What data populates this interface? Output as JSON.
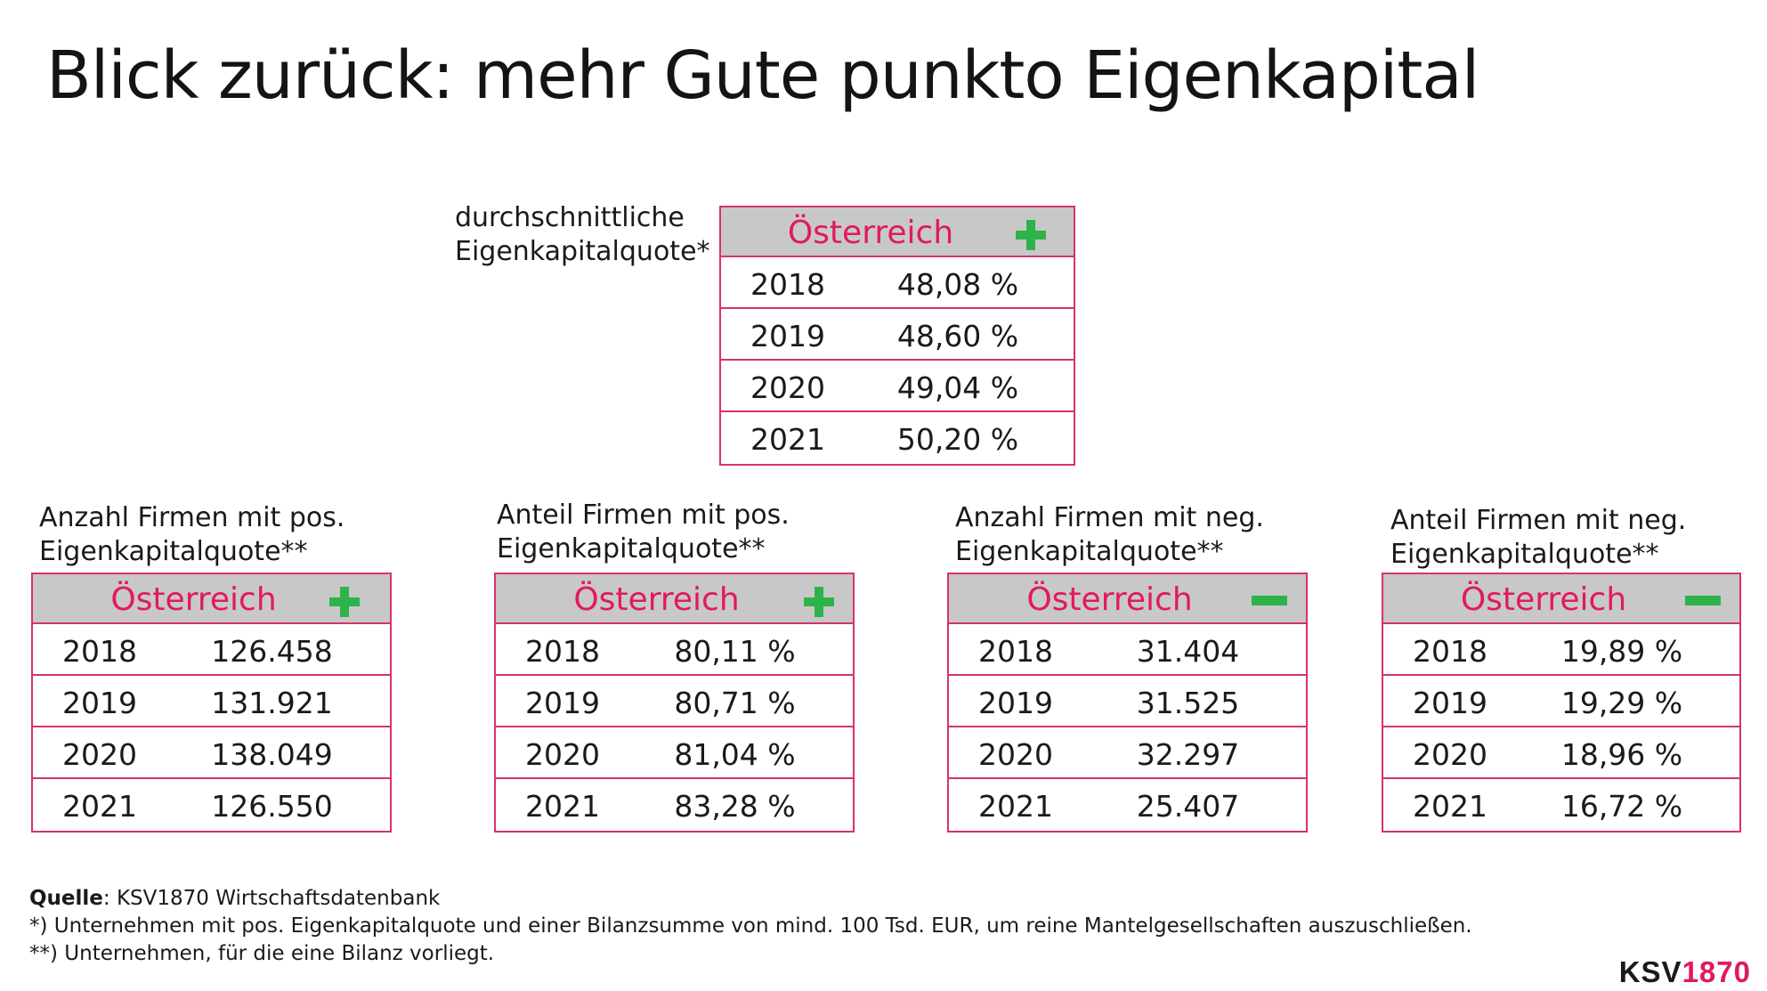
{
  "title": "Blick zurück: mehr Gute punkto Eigenkapital",
  "top": {
    "caption_line1": "durchschnittliche",
    "caption_line2": "Eigenkapitalquote*",
    "header": "Österreich",
    "indicator": "plus",
    "rows": [
      {
        "year": "2018",
        "value": "48,08 %"
      },
      {
        "year": "2019",
        "value": "48,60 %"
      },
      {
        "year": "2020",
        "value": "49,04 %"
      },
      {
        "year": "2021",
        "value": "50,20 %"
      }
    ]
  },
  "tables": [
    {
      "caption_line1": "Anzahl Firmen mit pos.",
      "caption_line2": "Eigenkapitalquote**",
      "header": "Österreich",
      "indicator": "plus",
      "rows": [
        {
          "year": "2018",
          "value": "126.458"
        },
        {
          "year": "2019",
          "value": "131.921"
        },
        {
          "year": "2020",
          "value": "138.049"
        },
        {
          "year": "2021",
          "value": "126.550"
        }
      ]
    },
    {
      "caption_line1": "Anteil Firmen mit pos.",
      "caption_line2": "Eigenkapitalquote**",
      "header": "Österreich",
      "indicator": "plus",
      "rows": [
        {
          "year": "2018",
          "value": "80,11 %"
        },
        {
          "year": "2019",
          "value": "80,71 %"
        },
        {
          "year": "2020",
          "value": "81,04 %"
        },
        {
          "year": "2021",
          "value": "83,28 %"
        }
      ]
    },
    {
      "caption_line1": "Anzahl Firmen mit neg.",
      "caption_line2": "Eigenkapitalquote**",
      "header": "Österreich",
      "indicator": "minus",
      "rows": [
        {
          "year": "2018",
          "value": "31.404"
        },
        {
          "year": "2019",
          "value": "31.525"
        },
        {
          "year": "2020",
          "value": "32.297"
        },
        {
          "year": "2021",
          "value": "25.407"
        }
      ]
    },
    {
      "caption_line1": "Anteil Firmen mit neg.",
      "caption_line2": "Eigenkapitalquote**",
      "header": "Österreich",
      "indicator": "minus",
      "rows": [
        {
          "year": "2018",
          "value": "19,89 %"
        },
        {
          "year": "2019",
          "value": "19,29 %"
        },
        {
          "year": "2020",
          "value": "18,96 %"
        },
        {
          "year": "2021",
          "value": "16,72 %"
        }
      ]
    }
  ],
  "footer": {
    "source_label": "Quelle",
    "source_text": ": KSV1870 Wirtschaftsdatenbank",
    "note1": "*) Unternehmen mit pos. Eigenkapitalquote und einer Bilanzsumme von mind. 100 Tsd. EUR,  um reine Mantelgesellschaften auszuschließen.",
    "note2": "**) Unternehmen, für die eine Bilanz vorliegt."
  },
  "logo": {
    "part1": "KSV",
    "part2": "1870"
  },
  "colors": {
    "accent": "#e2195f",
    "border": "#d6336c",
    "header_bg": "#c8c8c8",
    "indicator": "#2db34a"
  }
}
